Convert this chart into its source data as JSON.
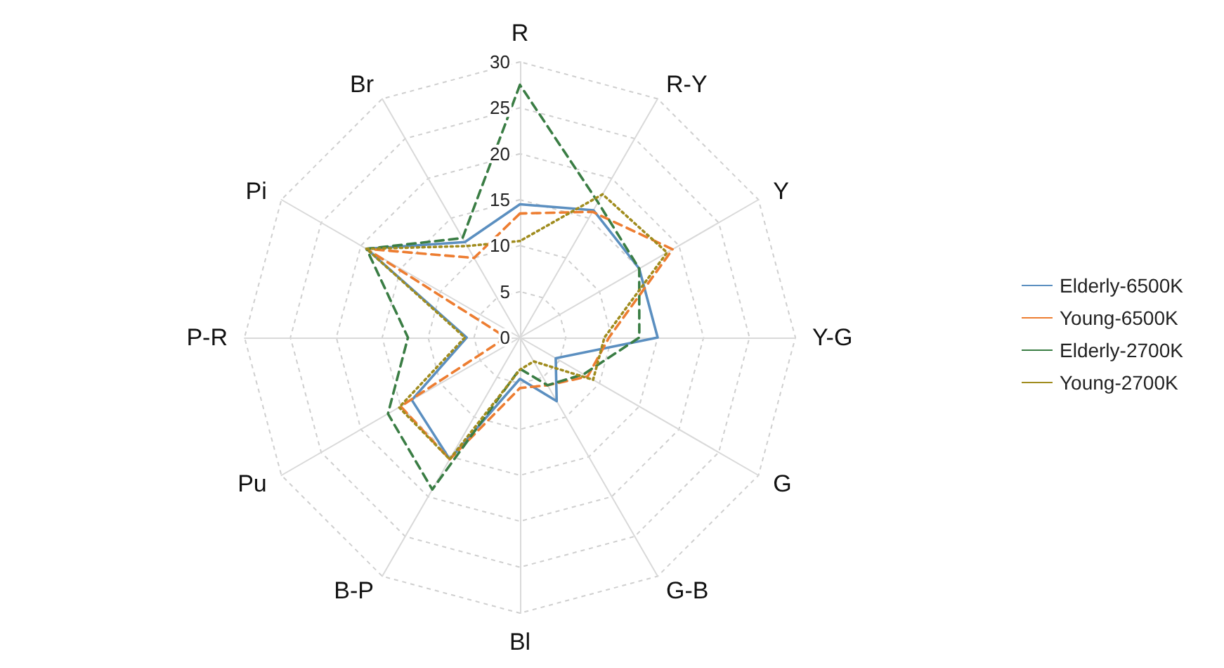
{
  "chart_data": {
    "type": "radar",
    "categories": [
      "R",
      "R-Y",
      "Y",
      "Y-G",
      "G",
      "G-B",
      "Bl",
      "B-P",
      "Pu",
      "P-R",
      "Pi",
      "Br"
    ],
    "ylim": [
      0,
      30
    ],
    "yticks": [
      0,
      5,
      10,
      15,
      20,
      25,
      30
    ],
    "grid": true,
    "legend": "right",
    "marker": "none",
    "series": [
      {
        "name": "Elderly-6500K",
        "color": "#5b8fc0",
        "line_style": "solid",
        "values": [
          14.5,
          16,
          15,
          15,
          4.5,
          8,
          4.5,
          15.3,
          13.6,
          5.8,
          19.3,
          12
        ]
      },
      {
        "name": "Young-6500K",
        "color": "#ed7d31",
        "line_style": "dashed",
        "values": [
          13.5,
          15.8,
          19.2,
          9.7,
          8.5,
          6,
          5.5,
          15.3,
          15,
          1.5,
          19.3,
          10
        ]
      },
      {
        "name": "Elderly-2700K",
        "color": "#3a7d44",
        "line_style": "dashed",
        "values": [
          27.5,
          17,
          15,
          13,
          8,
          6,
          3.4,
          19.1,
          16.6,
          12.2,
          19.3,
          12.5
        ]
      },
      {
        "name": "Young-2700K",
        "color": "#a08c1e",
        "line_style": "dotted",
        "values": [
          10.5,
          18,
          18.5,
          9.2,
          9.2,
          3,
          3.5,
          15.3,
          15.2,
          6,
          19.3,
          11.5
        ]
      }
    ]
  }
}
